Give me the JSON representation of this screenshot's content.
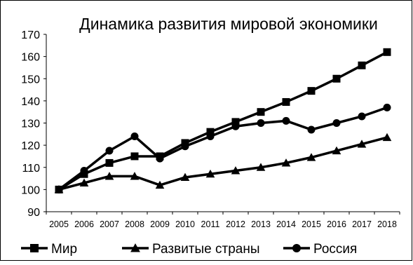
{
  "chart_data": {
    "type": "line",
    "title": "Динамика  развития мировой экономики",
    "categories": [
      "2005",
      "2006",
      "2007",
      "2008",
      "2009",
      "2010",
      "2011",
      "2012",
      "2013",
      "2014",
      "2015",
      "2016",
      "2017",
      "2018"
    ],
    "ylim": [
      90,
      170
    ],
    "yticks": [
      90,
      100,
      110,
      120,
      130,
      140,
      150,
      160,
      170
    ],
    "grid": false,
    "legend_position": "bottom",
    "series": [
      {
        "name": "Мир",
        "marker": "square",
        "values": [
          100,
          107,
          112,
          115,
          115,
          121,
          126,
          130.5,
          135,
          139.5,
          144.5,
          150,
          156,
          162
        ]
      },
      {
        "name": "Развитые  страны",
        "marker": "triangle",
        "values": [
          100,
          103,
          106,
          106,
          102,
          105.5,
          107,
          108.5,
          110,
          112,
          114.5,
          117.5,
          120.5,
          123.5
        ]
      },
      {
        "name": "Россия",
        "marker": "circle",
        "values": [
          100,
          108.5,
          117.5,
          124,
          114,
          119.5,
          124,
          128.5,
          130,
          131,
          127,
          130,
          133,
          137
        ]
      }
    ]
  }
}
